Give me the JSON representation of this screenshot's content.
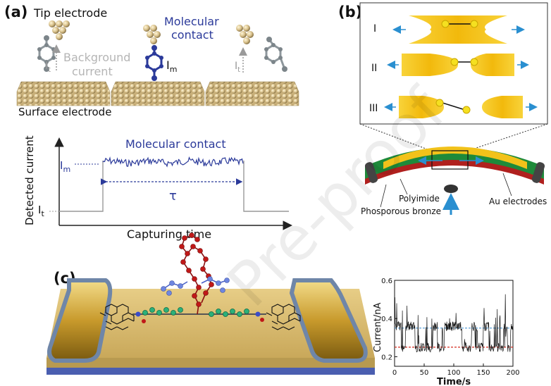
{
  "panel_a": {
    "label": "(a)",
    "tip_electrode": "Tip electrode",
    "molecular_contact_top_line1": "Molecular",
    "molecular_contact_top_line2": "contact",
    "background_line1": "Background",
    "background_line2": "current",
    "surface_electrode": "Surface electrode",
    "it_symbol": "I",
    "it_sub": "t",
    "im_symbol": "I",
    "im_sub": "m",
    "graph": {
      "ylabel": "Detected current",
      "xlabel": "Capturing time",
      "title": "Molecular contact",
      "tau": "τ",
      "im_label": "I",
      "im_label_sub": "m",
      "it_label": "I",
      "it_label_sub": "t"
    },
    "colors": {
      "blue": "#2b3a9a",
      "gray": "#9a9a9a",
      "gold": "#d9c38a"
    }
  },
  "panel_b": {
    "label": "(b)",
    "rows": [
      "I",
      "II",
      "III"
    ],
    "au": "Au",
    "polyimide": "Polyimide",
    "phosphor": "Phosporous bronze",
    "au_electrodes": "Au electrodes",
    "colors": {
      "gold": "#f2c21a",
      "green": "#1e8a3a",
      "red": "#b0201e",
      "arrow": "#2a8fd0"
    }
  },
  "panel_c": {
    "label": "(c)",
    "chart_data": {
      "type": "line",
      "xlabel": "Time/s",
      "ylabel": "Current/nA",
      "xlim": [
        0,
        200
      ],
      "ylim": [
        0.15,
        0.6
      ],
      "xticks": [
        "0",
        "50",
        "100",
        "150",
        "200"
      ],
      "yticks": [
        "0.2",
        "0.4",
        "0.6"
      ],
      "levels": [
        {
          "name": "",
          "value": 0.35,
          "color": "#5aa0d8"
        },
        {
          "name": "",
          "value": 0.25,
          "color": "#d42a1e"
        }
      ]
    }
  },
  "watermark": "Pre-proof"
}
